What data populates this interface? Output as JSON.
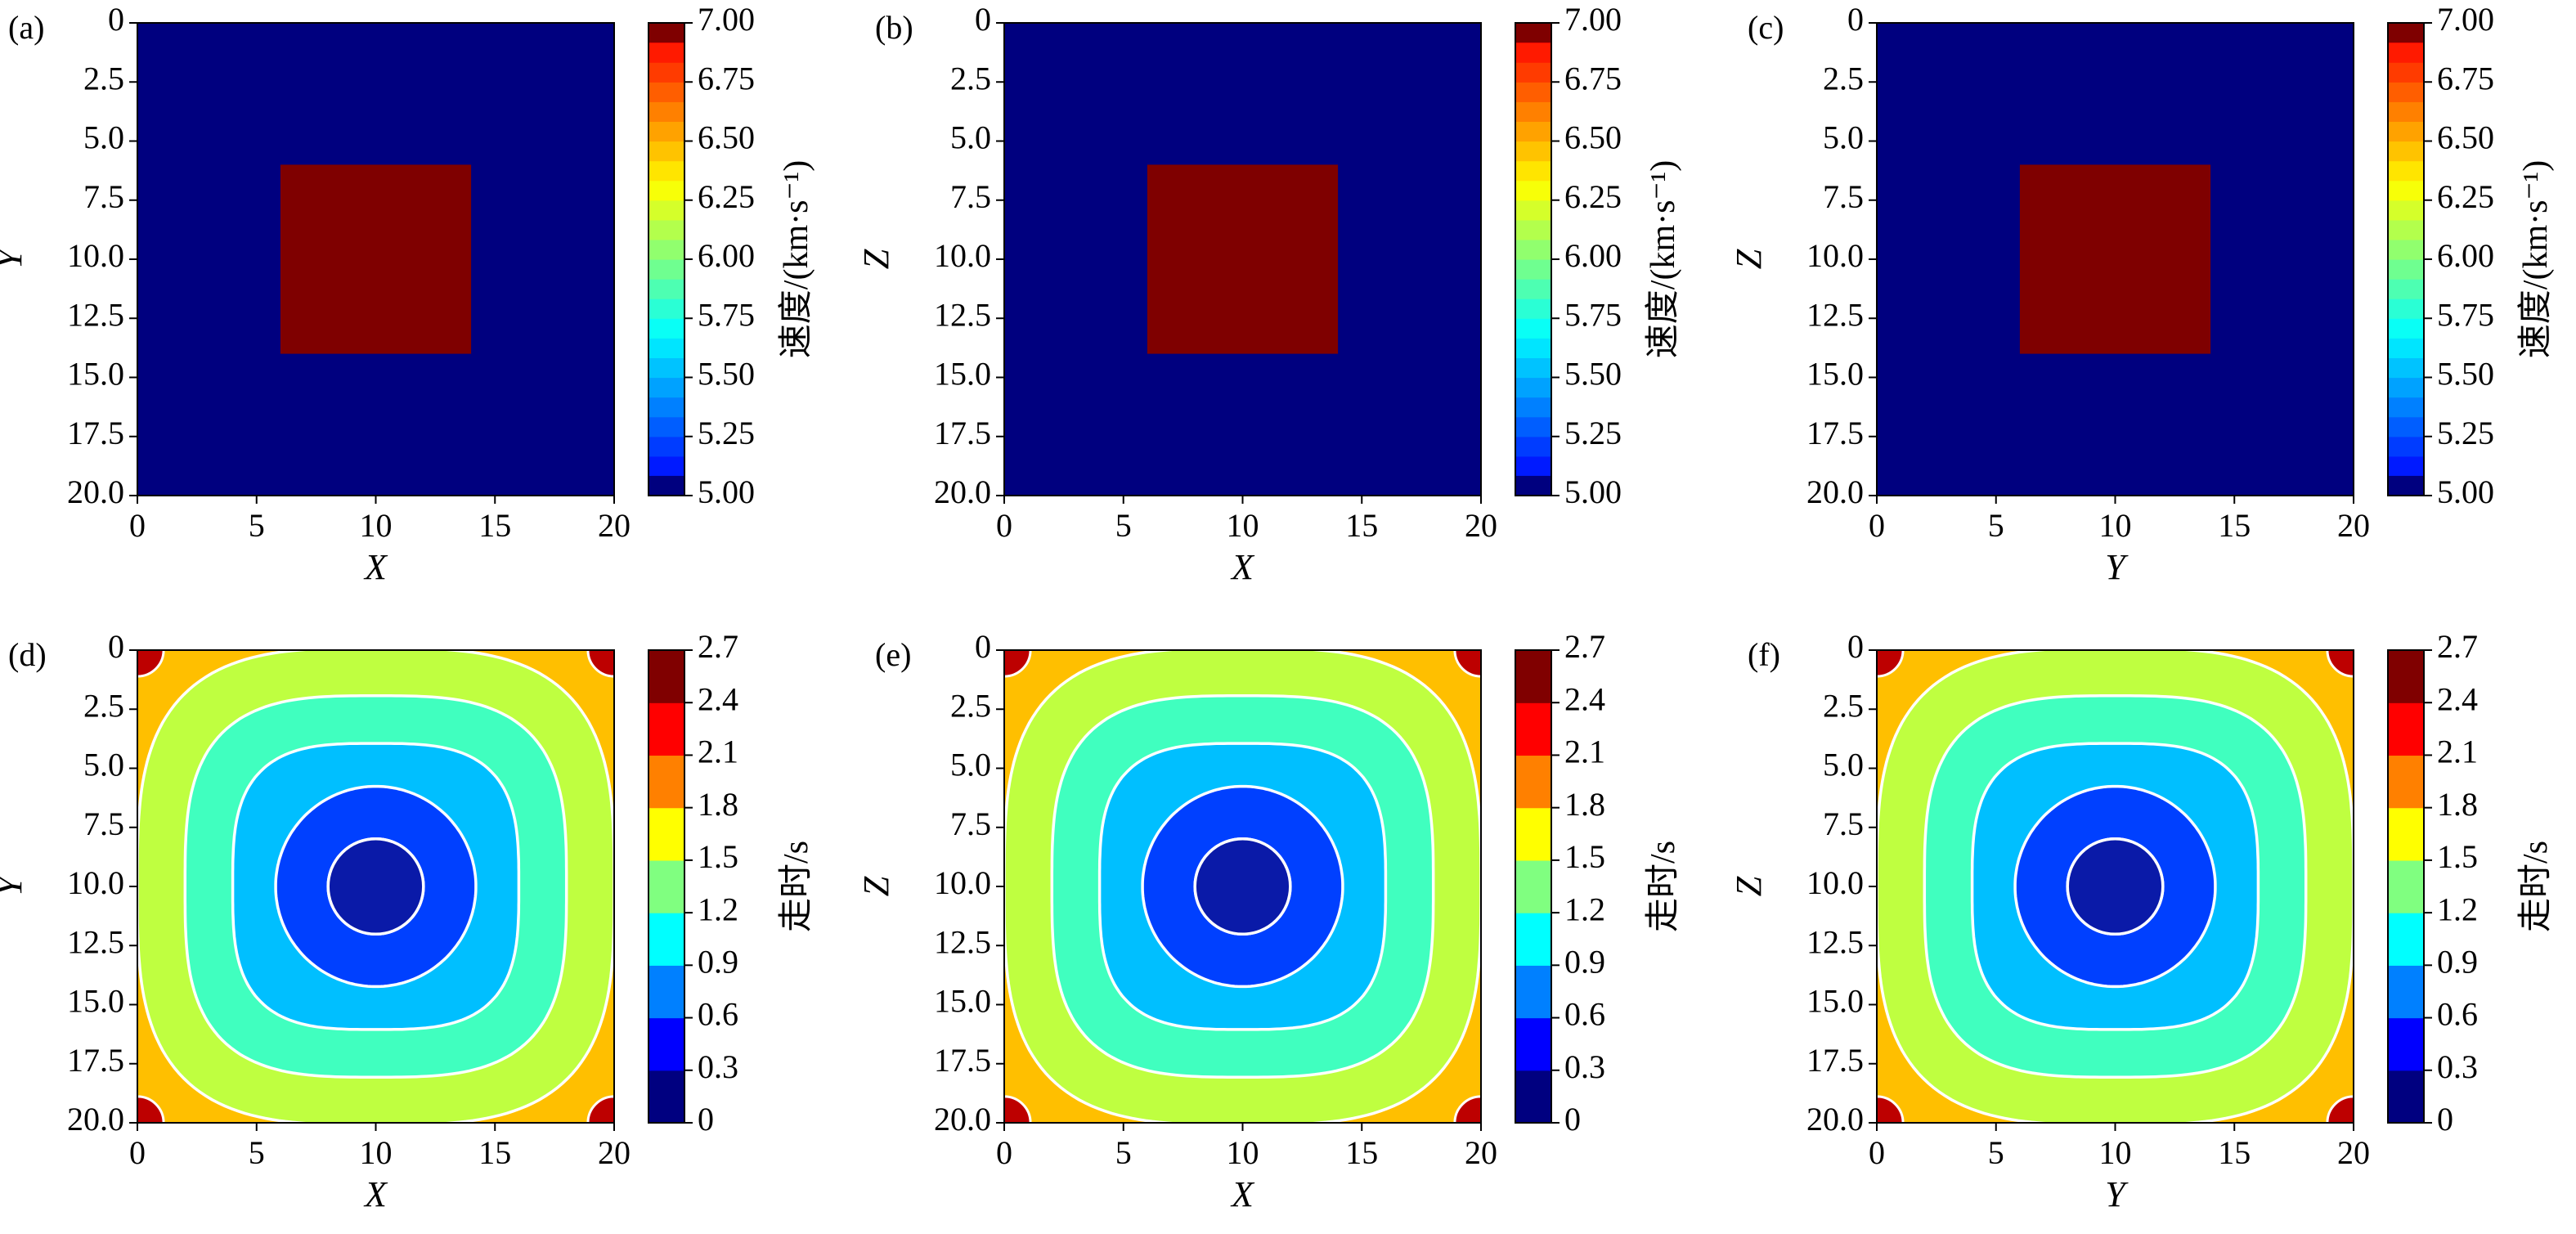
{
  "chart_data": [
    {
      "type": "heatmap",
      "panel": "(a)",
      "title": "",
      "xlabel": "X",
      "ylabel": "Y",
      "xlim": [
        0,
        20
      ],
      "ylim": [
        20,
        0
      ],
      "x_ticks": [
        "0",
        "5",
        "10",
        "15",
        "20"
      ],
      "y_ticks": [
        "0",
        "2.5",
        "5.0",
        "7.5",
        "10.0",
        "12.5",
        "15.0",
        "17.5",
        "20.0"
      ],
      "background_value": 5.0,
      "anomaly": {
        "x": [
          6,
          14
        ],
        "y": [
          6,
          14
        ],
        "value": 7.0
      },
      "colorbar": {
        "label": "速度/(km·s⁻¹)",
        "range": [
          5.0,
          7.0
        ],
        "ticks": [
          "5.00",
          "5.25",
          "5.50",
          "5.75",
          "6.00",
          "6.25",
          "6.50",
          "6.75",
          "7.00"
        ]
      },
      "colormap": "jet"
    },
    {
      "type": "heatmap",
      "panel": "(b)",
      "title": "",
      "xlabel": "X",
      "ylabel": "Z",
      "xlim": [
        0,
        20
      ],
      "ylim": [
        20,
        0
      ],
      "x_ticks": [
        "0",
        "5",
        "10",
        "15",
        "20"
      ],
      "y_ticks": [
        "0",
        "2.5",
        "5.0",
        "7.5",
        "10.0",
        "12.5",
        "15.0",
        "17.5",
        "20.0"
      ],
      "background_value": 5.0,
      "anomaly": {
        "x": [
          6,
          14
        ],
        "y": [
          6,
          14
        ],
        "value": 7.0
      },
      "colorbar": {
        "label": "速度/(km·s⁻¹)",
        "range": [
          5.0,
          7.0
        ],
        "ticks": [
          "5.00",
          "5.25",
          "5.50",
          "5.75",
          "6.00",
          "6.25",
          "6.50",
          "6.75",
          "7.00"
        ]
      },
      "colormap": "jet"
    },
    {
      "type": "heatmap",
      "panel": "(c)",
      "title": "",
      "xlabel": "Y",
      "ylabel": "Z",
      "xlim": [
        0,
        20
      ],
      "ylim": [
        20,
        0
      ],
      "x_ticks": [
        "0",
        "5",
        "10",
        "15",
        "20"
      ],
      "y_ticks": [
        "0",
        "2.5",
        "5.0",
        "7.5",
        "10.0",
        "12.5",
        "15.0",
        "17.5",
        "20.0"
      ],
      "background_value": 5.0,
      "anomaly": {
        "x": [
          6,
          14
        ],
        "y": [
          6,
          14
        ],
        "value": 7.0
      },
      "colorbar": {
        "label": "速度/(km·s⁻¹)",
        "range": [
          5.0,
          7.0
        ],
        "ticks": [
          "5.00",
          "5.25",
          "5.50",
          "5.75",
          "6.00",
          "6.25",
          "6.50",
          "6.75",
          "7.00"
        ]
      },
      "colormap": "jet"
    },
    {
      "type": "heatmap",
      "panel": "(d)",
      "subtype": "filled-contour",
      "title": "",
      "xlabel": "X",
      "ylabel": "Y",
      "xlim": [
        0,
        20
      ],
      "ylim": [
        20,
        0
      ],
      "x_ticks": [
        "0",
        "5",
        "10",
        "15",
        "20"
      ],
      "y_ticks": [
        "0",
        "2.5",
        "5.0",
        "7.5",
        "10.0",
        "12.5",
        "15.0",
        "17.5",
        "20.0"
      ],
      "source": [
        10,
        10
      ],
      "levels": [
        0,
        0.3,
        0.6,
        0.9,
        1.2,
        1.5,
        1.8,
        2.1,
        2.4,
        2.7
      ],
      "colorbar": {
        "label": "走时/s",
        "range": [
          0,
          2.7
        ],
        "ticks": [
          "0",
          "0.3",
          "0.6",
          "0.9",
          "1.2",
          "1.5",
          "1.8",
          "2.1",
          "2.4",
          "2.7"
        ]
      },
      "colormap": "jet"
    },
    {
      "type": "heatmap",
      "panel": "(e)",
      "subtype": "filled-contour",
      "title": "",
      "xlabel": "X",
      "ylabel": "Z",
      "xlim": [
        0,
        20
      ],
      "ylim": [
        20,
        0
      ],
      "x_ticks": [
        "0",
        "5",
        "10",
        "15",
        "20"
      ],
      "y_ticks": [
        "0",
        "2.5",
        "5.0",
        "7.5",
        "10.0",
        "12.5",
        "15.0",
        "17.5",
        "20.0"
      ],
      "source": [
        10,
        10
      ],
      "levels": [
        0,
        0.3,
        0.6,
        0.9,
        1.2,
        1.5,
        1.8,
        2.1,
        2.4,
        2.7
      ],
      "colorbar": {
        "label": "走时/s",
        "range": [
          0,
          2.7
        ],
        "ticks": [
          "0",
          "0.3",
          "0.6",
          "0.9",
          "1.2",
          "1.5",
          "1.8",
          "2.1",
          "2.4",
          "2.7"
        ]
      },
      "colormap": "jet"
    },
    {
      "type": "heatmap",
      "panel": "(f)",
      "subtype": "filled-contour",
      "title": "",
      "xlabel": "Y",
      "ylabel": "Z",
      "xlim": [
        0,
        20
      ],
      "ylim": [
        20,
        0
      ],
      "x_ticks": [
        "0",
        "5",
        "10",
        "15",
        "20"
      ],
      "y_ticks": [
        "0",
        "2.5",
        "5.0",
        "7.5",
        "10.0",
        "12.5",
        "15.0",
        "17.5",
        "20.0"
      ],
      "source": [
        10,
        10
      ],
      "levels": [
        0,
        0.3,
        0.6,
        0.9,
        1.2,
        1.5,
        1.8,
        2.1,
        2.4,
        2.7
      ],
      "colorbar": {
        "label": "走时/s",
        "range": [
          0,
          2.7
        ],
        "ticks": [
          "0",
          "0.3",
          "0.6",
          "0.9",
          "1.2",
          "1.5",
          "1.8",
          "2.1",
          "2.4",
          "2.7"
        ]
      },
      "colormap": "jet"
    }
  ]
}
